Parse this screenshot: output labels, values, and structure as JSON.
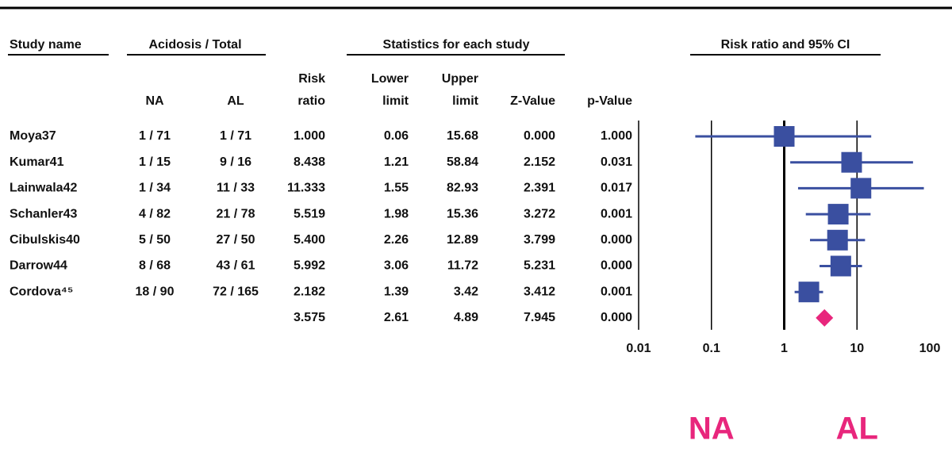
{
  "table": {
    "group_headers": [
      "Study name",
      "Acidosis / Total",
      "Statistics for each study"
    ],
    "column_headers": [
      [
        "NA"
      ],
      [
        "AL"
      ],
      [
        "Risk",
        "ratio"
      ],
      [
        "Lower",
        "limit"
      ],
      [
        "Upper",
        "limit"
      ],
      [
        "Z-Value"
      ],
      [
        "p-Value"
      ]
    ],
    "na": [
      "1 / 71",
      "1 / 15",
      "1 / 34",
      "4 / 82",
      "5 / 50",
      "8 / 68",
      "18 / 90"
    ],
    "al": [
      "1 / 71",
      "9 / 16",
      "11 / 33",
      "21 / 78",
      "27 / 50",
      "43 / 61",
      "72 / 165"
    ],
    "z": [
      "0.000",
      "2.152",
      "2.391",
      "3.272",
      "3.799",
      "5.231",
      "3.412",
      "7.945"
    ],
    "p": [
      "1.000",
      "0.031",
      "0.017",
      "0.001",
      "0.000",
      "0.000",
      "0.001",
      "0.000"
    ]
  },
  "chart_data": {
    "type": "forest",
    "title": "Risk ratio and 95% CI",
    "categories": [
      "Moya37",
      "Kumar41",
      "Lainwala42",
      "Schanler43",
      "Cibulskis40",
      "Darrow44",
      "Cordova⁴⁵",
      null
    ],
    "values": [
      1.0,
      8.438,
      11.333,
      5.519,
      5.4,
      5.992,
      2.182,
      3.575
    ],
    "value_labels": [
      "1.000",
      "8.438",
      "11.333",
      "5.519",
      "5.400",
      "5.992",
      "2.182",
      "3.575"
    ],
    "lower": [
      0.06,
      1.21,
      1.55,
      1.98,
      2.26,
      3.06,
      1.39,
      2.61
    ],
    "upper": [
      15.68,
      58.84,
      82.93,
      15.36,
      12.89,
      11.72,
      3.42,
      4.89
    ],
    "xlim": [
      0.01,
      100
    ],
    "xticks": [
      0.01,
      0.1,
      1,
      10,
      100
    ],
    "log_scale": true,
    "grid": true,
    "color": "#3a4fa0",
    "summary_color": "#e8267c",
    "left_label": "NA",
    "right_label": "AL"
  }
}
